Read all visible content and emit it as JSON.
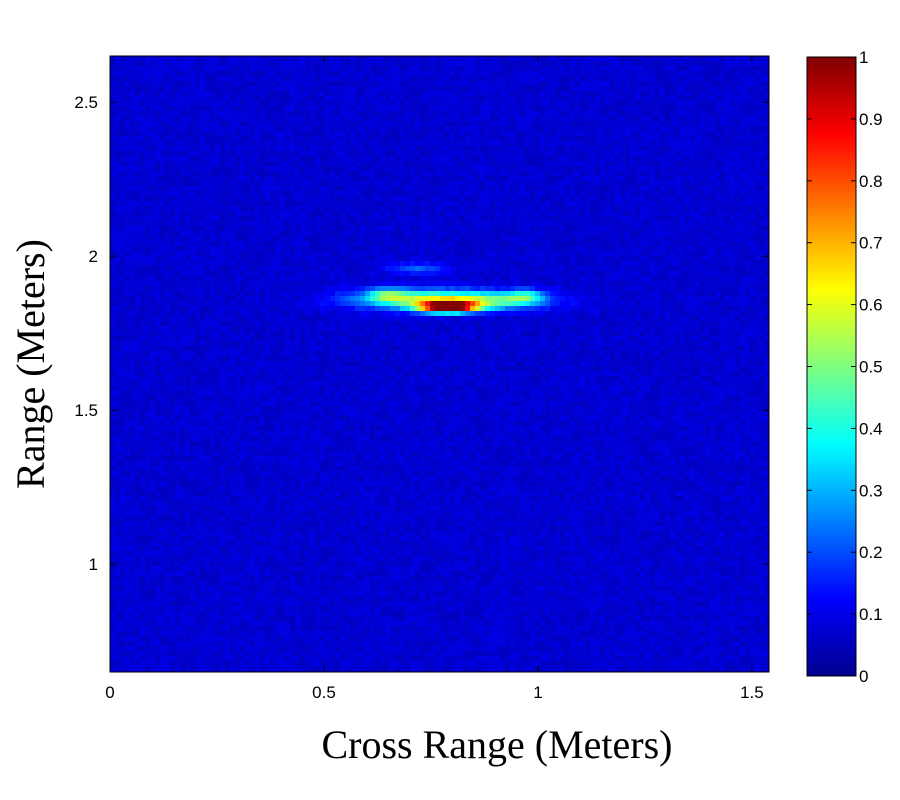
{
  "chart_data": {
    "type": "heatmap",
    "title": "",
    "xlabel": "Cross Range (Meters)",
    "ylabel": "Range (Meters)",
    "xlim": [
      0,
      1.54
    ],
    "ylim": [
      0.65,
      2.65
    ],
    "x_ticks": [
      "0",
      "0.5",
      "1",
      "1.5"
    ],
    "y_ticks": [
      "1",
      "1.5",
      "2",
      "2.5"
    ],
    "colorbar": {
      "range": [
        0,
        1
      ],
      "colormap": "jet",
      "ticks": [
        "0",
        "0.1",
        "0.2",
        "0.3",
        "0.4",
        "0.5",
        "0.6",
        "0.7",
        "0.8",
        "0.9",
        "1"
      ]
    },
    "background_level": 0.08,
    "hotspots": [
      {
        "x": 0.79,
        "y": 1.835,
        "peak": 1.0,
        "sx": 0.045,
        "sy": 0.012
      },
      {
        "x": 0.72,
        "y": 1.86,
        "peak": 0.38,
        "sx": 0.11,
        "sy": 0.022
      },
      {
        "x": 0.88,
        "y": 1.855,
        "peak": 0.32,
        "sx": 0.1,
        "sy": 0.02
      },
      {
        "x": 0.65,
        "y": 1.875,
        "peak": 0.22,
        "sx": 0.03,
        "sy": 0.015
      },
      {
        "x": 0.97,
        "y": 1.87,
        "peak": 0.24,
        "sx": 0.03,
        "sy": 0.015
      },
      {
        "x": 0.72,
        "y": 1.96,
        "peak": 0.14,
        "sx": 0.05,
        "sy": 0.013
      }
    ],
    "grid": false
  }
}
